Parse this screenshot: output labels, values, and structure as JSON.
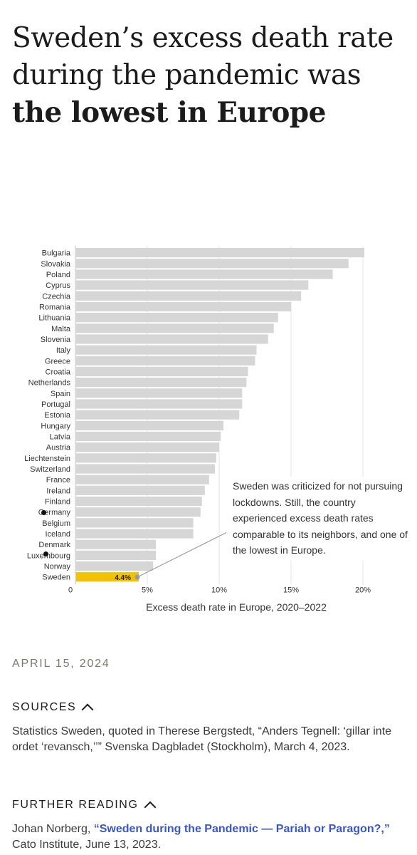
{
  "title": {
    "part1": "Sweden’s excess death rate during the pandemic was ",
    "bold": "the lowest in Europe"
  },
  "chart_data": {
    "type": "bar",
    "orientation": "horizontal",
    "xlabel": "Excess death rate in Europe, 2020–2022",
    "xlim": [
      0,
      21
    ],
    "ticks": [
      0,
      5,
      10,
      15,
      20
    ],
    "tick_labels": [
      "0",
      "5%",
      "10%",
      "15%",
      "20%"
    ],
    "grid": true,
    "categories": [
      "Bulgaria",
      "Slovakia",
      "Poland",
      "Cyprus",
      "Czechia",
      "Romania",
      "Lithuania",
      "Malta",
      "Slovenia",
      "Italy",
      "Greece",
      "Croatia",
      "Netherlands",
      "Spain",
      "Portugal",
      "Estonia",
      "Hungary",
      "Latvia",
      "Austria",
      "Liechtenstein",
      "Switzerland",
      "France",
      "Ireland",
      "Finland",
      "Germany",
      "Belgium",
      "Iceland",
      "Denmark",
      "Luxembourg",
      "Norway",
      "Sweden"
    ],
    "values": [
      20.1,
      19.0,
      17.9,
      16.2,
      15.7,
      15.0,
      14.1,
      13.8,
      13.4,
      12.6,
      12.5,
      12.0,
      11.9,
      11.6,
      11.6,
      11.4,
      10.3,
      10.1,
      10.0,
      9.8,
      9.7,
      9.3,
      9.0,
      8.8,
      8.7,
      8.2,
      8.2,
      5.6,
      5.6,
      5.4,
      4.4
    ],
    "bar_color": "#d6d6d6",
    "highlight": {
      "category": "Sweden",
      "color": "#f2c200",
      "label": "4.4%"
    },
    "annotation": "Sweden was criticized for not pursuing lockdowns. Still, the country experienced excess death rates comparable to its neighbors, and one of the lowest in Europe."
  },
  "date": "APRIL 15, 2024",
  "sources": {
    "heading": "SOURCES",
    "text": "Statistics Sweden, quoted in Therese Bergstedt, “Anders Tegnell: ‘gillar inte ordet ‘revansch,’’” Svenska Dagbladet (Stockholm), March 4, 2023."
  },
  "further_reading": {
    "heading": "FURTHER READING",
    "author": "Johan Norberg, ",
    "link_text": "“Sweden during the Pandemic — Pariah or Paragon?,”",
    "rest": " Cato Institute, June 13, 2023."
  }
}
